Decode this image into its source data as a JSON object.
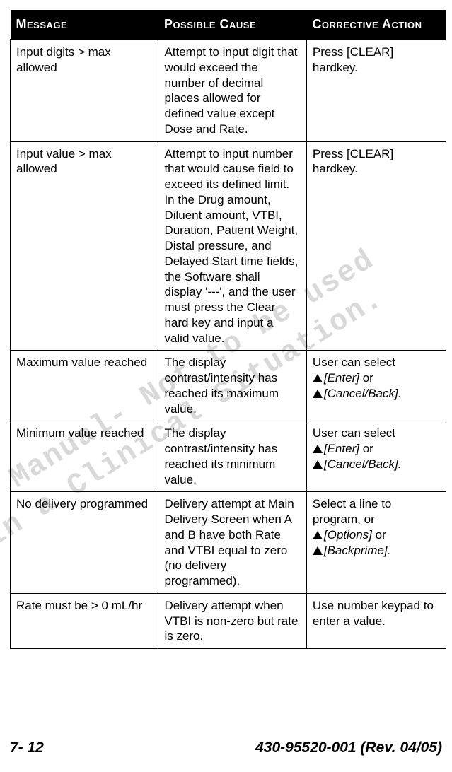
{
  "watermark": {
    "line1": "Draft Manual- Not to be used",
    "line2": "in a Clinical Situation.",
    "color": "#d9d9d9",
    "fontsize": 42
  },
  "table": {
    "header_bg": "#000000",
    "header_fg": "#ffffff",
    "border_color": "#000000",
    "cell_fontsize": 17,
    "columns": [
      "Message",
      "Possible Cause",
      "Corrective Action"
    ],
    "rows": [
      {
        "message": "Input digits > max allowed",
        "cause": "Attempt to input digit that would exceed the number of decimal places allowed for defined value except Dose and Rate.",
        "action": [
          {
            "type": "text",
            "value": "Press [CLEAR] hardkey."
          }
        ]
      },
      {
        "message": "Input value > max allowed",
        "cause": "Attempt to input number that would cause field to exceed its defined limit. In the Drug amount, Diluent amount, VTBI, Duration, Patient Weight, Distal pressure, and Delayed Start time fields, the Software shall display '---', and the user must press the Clear hard key and input a valid value.",
        "action": [
          {
            "type": "text",
            "value": "Press [CLEAR] hardkey."
          }
        ]
      },
      {
        "message": "Maximum value reached",
        "cause": "The display contrast/intensity has reached its maximum value.",
        "action": [
          {
            "type": "text",
            "value": "User can select"
          },
          {
            "type": "br"
          },
          {
            "type": "softkey",
            "value": "[Enter]"
          },
          {
            "type": "text",
            "value": " or"
          },
          {
            "type": "br"
          },
          {
            "type": "softkey",
            "value": "[Cancel/Back]."
          }
        ]
      },
      {
        "message": "Minimum value reached",
        "cause": "The display contrast/intensity has reached its minimum value.",
        "action": [
          {
            "type": "text",
            "value": "User can select"
          },
          {
            "type": "br"
          },
          {
            "type": "softkey",
            "value": "[Enter]"
          },
          {
            "type": "text",
            "value": " or"
          },
          {
            "type": "br"
          },
          {
            "type": "softkey",
            "value": "[Cancel/Back]."
          }
        ]
      },
      {
        "message": "No delivery programmed",
        "cause": "Delivery attempt at Main Delivery Screen when A and B have both Rate and VTBI equal to zero (no delivery programmed).",
        "action": [
          {
            "type": "text",
            "value": "Select a line to program, or"
          },
          {
            "type": "br"
          },
          {
            "type": "softkey",
            "value": "[Options]"
          },
          {
            "type": "text",
            "value": " or"
          },
          {
            "type": "br"
          },
          {
            "type": "softkey",
            "value": "[Backprime]."
          }
        ]
      },
      {
        "message": "Rate must be > 0 mL/hr",
        "cause": "Delivery attempt when VTBI is non-zero but rate is zero.",
        "action": [
          {
            "type": "text",
            "value": "Use number keypad to enter a value."
          }
        ]
      }
    ]
  },
  "footer": {
    "page": "7- 12",
    "doc": "430-95520-001 (Rev. 04/05)",
    "fontsize": 21
  }
}
